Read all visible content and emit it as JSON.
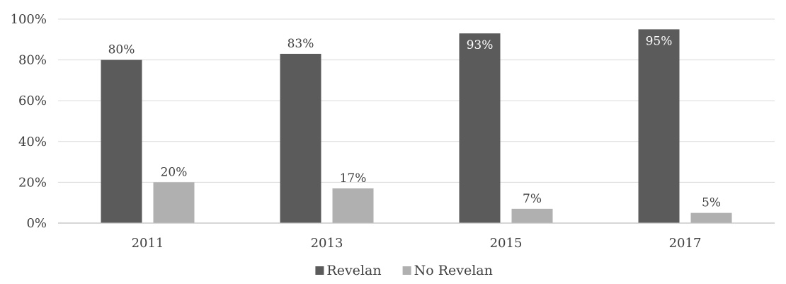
{
  "chart_data": {
    "type": "bar",
    "categories": [
      "2011",
      "2013",
      "2015",
      "2017"
    ],
    "series": [
      {
        "name": "Revelan",
        "values": [
          80,
          83,
          93,
          95
        ],
        "labels": [
          "80%",
          "83%",
          "93%",
          "95%"
        ],
        "color": "#5b5b5b"
      },
      {
        "name": "No Revelan",
        "values": [
          20,
          17,
          7,
          5
        ],
        "labels": [
          "20%",
          "17%",
          "7%",
          "5%"
        ],
        "color": "#b0b0b0"
      }
    ],
    "y_ticks": [
      "0%",
      "20%",
      "40%",
      "60%",
      "80%",
      "100%"
    ],
    "ylim": [
      0,
      100
    ],
    "grid": true,
    "legend_position": "bottom"
  }
}
